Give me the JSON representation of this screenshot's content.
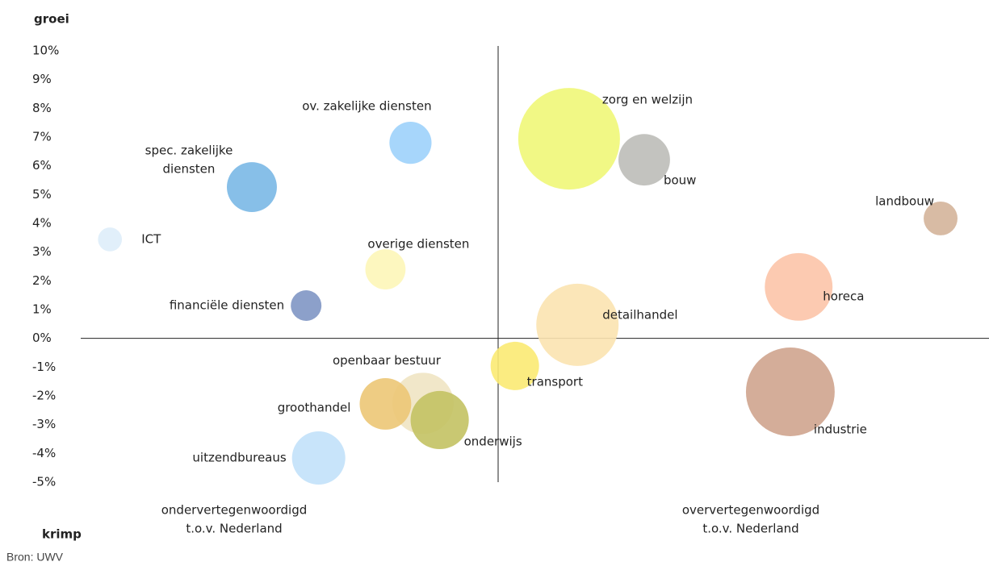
{
  "chart_data": {
    "type": "bubble",
    "y_label_top": "groei",
    "y_label_bottom": "krimp",
    "x_label_left": [
      "ondervertegenwoordigd",
      "t.o.v. Nederland"
    ],
    "x_label_right": [
      "oververtegenwoordigd",
      "t.o.v. Nederland"
    ],
    "source": "Bron: UWV",
    "xlim": [
      -1,
      1.176
    ],
    "ylim": [
      -5,
      10
    ],
    "yticks": [
      {
        "value": 10,
        "label": "10%"
      },
      {
        "value": 9,
        "label": "9%"
      },
      {
        "value": 8,
        "label": "8%"
      },
      {
        "value": 7,
        "label": "7%"
      },
      {
        "value": 6,
        "label": "6%"
      },
      {
        "value": 5,
        "label": "5%"
      },
      {
        "value": 4,
        "label": "4%"
      },
      {
        "value": 3,
        "label": "3%"
      },
      {
        "value": 2,
        "label": "2%"
      },
      {
        "value": 1,
        "label": "1%"
      },
      {
        "value": 0,
        "label": "0%"
      },
      {
        "value": -1,
        "label": "-1%"
      },
      {
        "value": -2,
        "label": "-2%"
      },
      {
        "value": -3,
        "label": "-3%"
      },
      {
        "value": -4,
        "label": "-4%"
      },
      {
        "value": -5,
        "label": "-5%"
      }
    ],
    "points": [
      {
        "label": "zorg en welzijn",
        "x": 0.17,
        "y": 6.94,
        "size": 397,
        "color": "#eff778"
      },
      {
        "label": "bouw",
        "x": 0.35,
        "y": 6.21,
        "size": 102,
        "color": "#bdbdb8"
      },
      {
        "label": "landbouw",
        "x": 1.06,
        "y": 4.17,
        "size": 44,
        "color": "#d4b49a"
      },
      {
        "label": "ov. zakelijke diensten",
        "x": -0.21,
        "y": 6.8,
        "size": 68,
        "color": "#9dd1fb"
      },
      {
        "label": [
          "spec. zakelijke",
          "diensten"
        ],
        "x": -0.59,
        "y": 5.26,
        "size": 96,
        "color": "#7ab8e6"
      },
      {
        "label": "ICT",
        "x": -0.93,
        "y": 3.44,
        "size": 22,
        "color": "#deedf9"
      },
      {
        "label": "overige diensten",
        "x": -0.27,
        "y": 2.4,
        "size": 62,
        "color": "#fdf6b8"
      },
      {
        "label": "financiële diensten",
        "x": -0.46,
        "y": 1.14,
        "size": 36,
        "color": "#7f96c4"
      },
      {
        "label": "horeca",
        "x": 0.72,
        "y": 1.79,
        "size": 176,
        "color": "#fcc4a8"
      },
      {
        "label": "detailhandel",
        "x": 0.19,
        "y": 0.47,
        "size": 260,
        "color": "#fbe3b0"
      },
      {
        "label": "transport",
        "x": 0.04,
        "y": -0.96,
        "size": 90,
        "color": "#fbea73"
      },
      {
        "label": "industrie",
        "x": 0.7,
        "y": -1.86,
        "size": 302,
        "color": "#cfa48e"
      },
      {
        "label": "openbaar bestuur",
        "x": -0.18,
        "y": -2.26,
        "size": 144,
        "color": "#f0e4c3"
      },
      {
        "label": "groothandel",
        "x": -0.27,
        "y": -2.28,
        "size": 102,
        "color": "#ecc776"
      },
      {
        "label": "onderwijs",
        "x": -0.14,
        "y": -2.84,
        "size": 130,
        "color": "#c3c263"
      },
      {
        "label": "uitzendbureaus",
        "x": -0.43,
        "y": -4.16,
        "size": 109,
        "color": "#c2e1fa"
      }
    ]
  }
}
